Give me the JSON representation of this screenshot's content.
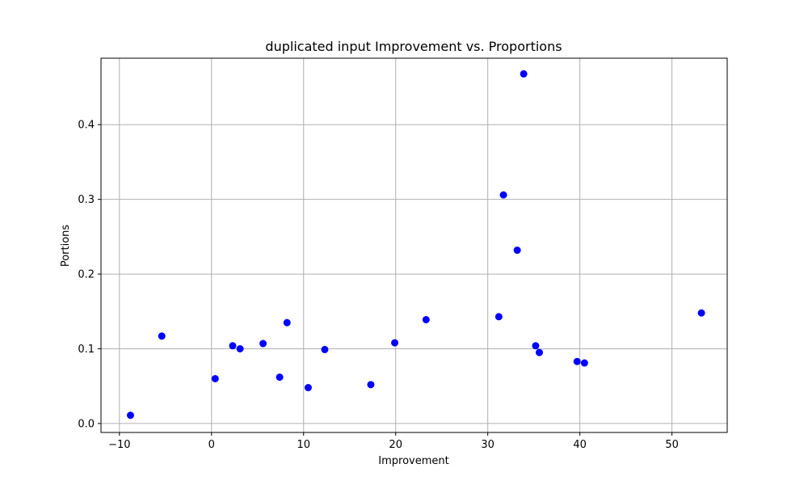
{
  "chart_data": {
    "type": "scatter",
    "title": "duplicated input Improvement vs. Proportions",
    "xlabel": "Improvement",
    "ylabel": "Portions",
    "xlim": [
      -12,
      56
    ],
    "ylim": [
      -0.012,
      0.489
    ],
    "xticks": [
      -10,
      0,
      10,
      20,
      30,
      40,
      50
    ],
    "yticks": [
      0.0,
      0.1,
      0.2,
      0.3,
      0.4
    ],
    "xtick_labels": [
      "−10",
      "0",
      "10",
      "20",
      "30",
      "40",
      "50"
    ],
    "ytick_labels": [
      "0.0",
      "0.1",
      "0.2",
      "0.3",
      "0.4"
    ],
    "grid": true,
    "marker_color": "#0000ff",
    "points": [
      {
        "x": -8.8,
        "y": 0.011
      },
      {
        "x": -5.4,
        "y": 0.117
      },
      {
        "x": 0.4,
        "y": 0.06
      },
      {
        "x": 2.3,
        "y": 0.104
      },
      {
        "x": 3.1,
        "y": 0.1
      },
      {
        "x": 5.6,
        "y": 0.107
      },
      {
        "x": 7.4,
        "y": 0.062
      },
      {
        "x": 8.2,
        "y": 0.135
      },
      {
        "x": 10.5,
        "y": 0.048
      },
      {
        "x": 12.3,
        "y": 0.099
      },
      {
        "x": 17.3,
        "y": 0.052
      },
      {
        "x": 19.9,
        "y": 0.108
      },
      {
        "x": 23.3,
        "y": 0.139
      },
      {
        "x": 31.2,
        "y": 0.143
      },
      {
        "x": 31.7,
        "y": 0.306
      },
      {
        "x": 33.2,
        "y": 0.232
      },
      {
        "x": 33.9,
        "y": 0.468
      },
      {
        "x": 35.2,
        "y": 0.104
      },
      {
        "x": 35.6,
        "y": 0.095
      },
      {
        "x": 39.7,
        "y": 0.083
      },
      {
        "x": 40.5,
        "y": 0.081
      },
      {
        "x": 53.2,
        "y": 0.148
      }
    ]
  }
}
